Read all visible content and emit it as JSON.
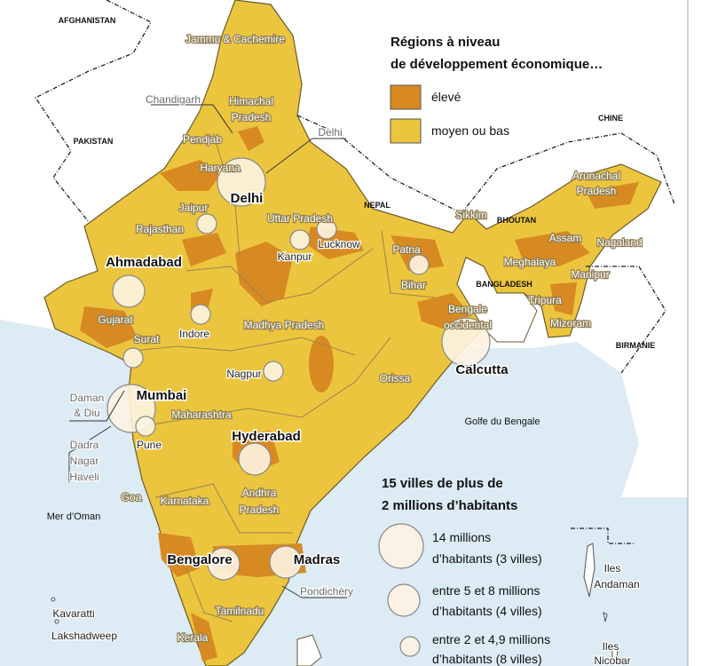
{
  "legend_regions": {
    "title": [
      "Régions à niveau",
      "de développement économique…"
    ],
    "items": [
      "élevé",
      "moyen ou bas"
    ]
  },
  "legend_cities": {
    "title": [
      "15 villes de plus de",
      "2 millions d’habitants"
    ],
    "items": [
      [
        "14 millions",
        "d’habitants (3 villes)"
      ],
      [
        "entre 5 et 8 millions",
        "d’habitants (4 villes)"
      ],
      [
        "entre 2 et 4,9 millions",
        "d’habitants (8 villes)"
      ]
    ]
  },
  "countries": [
    "AFGHANISTAN",
    "PAKISTAN",
    "CHINE",
    "NEPAL",
    "BHOUTAN",
    "BANGLADESH",
    "BIRMANIE"
  ],
  "seas": [
    "Mer d’Oman",
    "Golfe du Bengale"
  ],
  "states": [
    "Jammu & Cachemire",
    [
      "Himachal",
      "Pradesh"
    ],
    "Pendjab",
    "Haryana",
    "Rajasthan",
    "Uttar Pradesh",
    "Gujarat",
    "Madhya Pradesh",
    "Bihar",
    [
      "Bengale",
      "occidental"
    ],
    "Sikkim",
    [
      "Arunachal",
      "Pradesh"
    ],
    "Assam",
    "Nagaland",
    "Meghalaya",
    "Manipur",
    "Tripura",
    "Mizoram",
    "Orissa",
    "Maharashtra",
    [
      "Andhra",
      "Pradesh"
    ],
    "Karnataka",
    "Goa",
    "Kerala",
    "Tamilnadu"
  ],
  "cities": [
    "Chandigarh",
    "Delhi",
    "Delhi",
    "Jaipur",
    "Lucknow",
    "Kanpur",
    "Patna",
    "Ahmadabad",
    "Indore",
    "Surat",
    [
      "Daman",
      "& Diu"
    ],
    "Mumbai",
    [
      "Dadra",
      "Nagar",
      "Haveli"
    ],
    "Nagpur",
    "Pune",
    "Calcutta",
    "Hyderabad",
    "Bengalore",
    "Madras",
    "Pondichéry"
  ],
  "islands": [
    "Kavaratti",
    "Lakshadweep",
    [
      "Iles",
      "Andaman"
    ],
    [
      "Iles",
      "Nicobar"
    ]
  ]
}
